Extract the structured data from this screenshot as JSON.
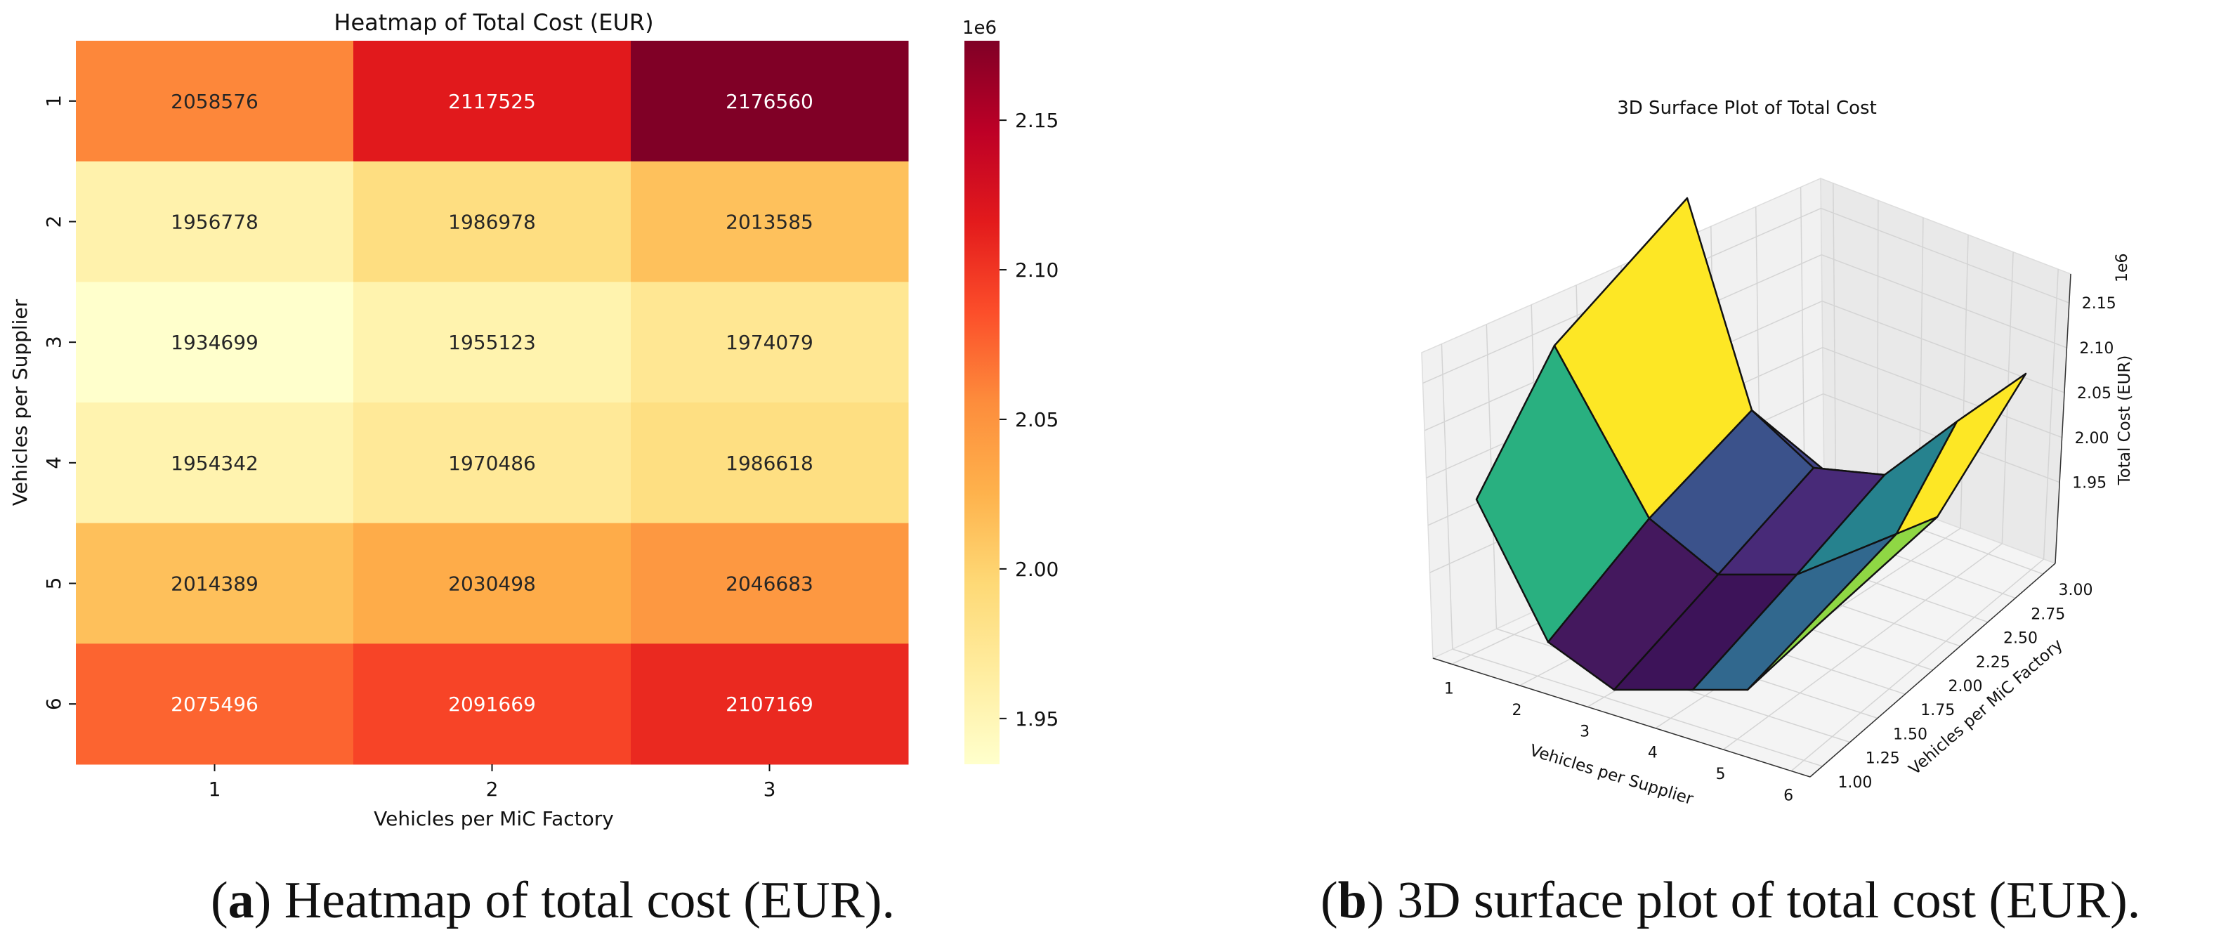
{
  "chart_data": [
    {
      "type": "heatmap",
      "title": "Heatmap of Total Cost (EUR)",
      "xlabel": "Vehicles per MiC Factory",
      "ylabel": "Vehicles per Supplier",
      "x_categories": [
        "1",
        "2",
        "3"
      ],
      "y_categories": [
        "1",
        "2",
        "3",
        "4",
        "5",
        "6"
      ],
      "values": [
        [
          2058576,
          2117525,
          2176560
        ],
        [
          1956778,
          1986978,
          2013585
        ],
        [
          1934699,
          1955123,
          1974079
        ],
        [
          1954342,
          1970486,
          1986618
        ],
        [
          2014389,
          2030498,
          2046683
        ],
        [
          2075496,
          2091669,
          2107169
        ]
      ],
      "colormap": "YlOrRd",
      "colorbar": {
        "ticks": [
          "1.95",
          "2.00",
          "2.05",
          "2.10",
          "2.15"
        ],
        "tick_values": [
          1950000,
          2000000,
          2050000,
          2100000,
          2150000
        ],
        "multiplier": "1e6",
        "range": [
          1934699,
          2176560
        ]
      }
    },
    {
      "type": "surface3d",
      "title": "3D Surface Plot of Total Cost",
      "xlabel": "Vehicles per Supplier",
      "ylabel": "Vehicles per MiC Factory",
      "zlabel": "Total Cost (EUR)",
      "x_ticks": [
        "1",
        "2",
        "3",
        "4",
        "5",
        "6"
      ],
      "y_ticks": [
        "1.00",
        "1.25",
        "1.50",
        "1.75",
        "2.00",
        "2.25",
        "2.50",
        "2.75",
        "3.00"
      ],
      "z_ticks": [
        "1.95",
        "2.00",
        "2.05",
        "2.10",
        "2.15"
      ],
      "z_multiplier": "1e6",
      "colormap": "viridis"
    }
  ],
  "captions": {
    "a_label": "a",
    "a_text": ") Heatmap of total cost (EUR).",
    "b_label": "b",
    "b_text": ") 3D surface plot of total cost (EUR)."
  }
}
